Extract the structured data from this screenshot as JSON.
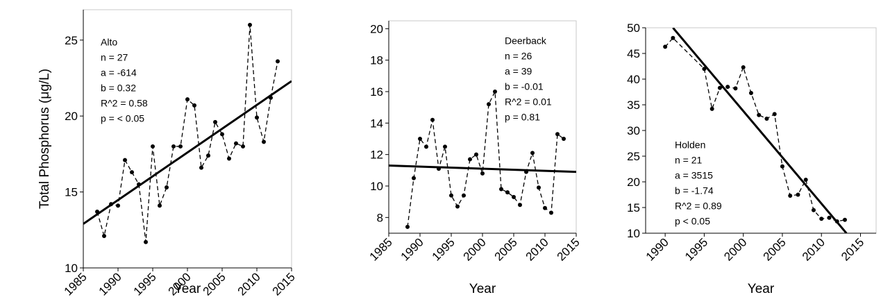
{
  "chart_data": [
    {
      "type": "line",
      "ylabel": "Total Phosphorus (μg/L)",
      "xlabel": "Year",
      "annotation": [
        "Alto",
        "n = 27",
        "a = -614",
        "b = 0.32",
        "R^2 = 0.58",
        "p = < 0.05"
      ],
      "xlim": [
        1985,
        2015
      ],
      "xticks": [
        1985,
        1990,
        1995,
        2000,
        2005,
        2010,
        2015
      ],
      "ylim": [
        10,
        27
      ],
      "yticks": [
        10,
        15,
        20,
        25
      ],
      "x": [
        1987,
        1988,
        1989,
        1990,
        1991,
        1992,
        1993,
        1994,
        1995,
        1996,
        1997,
        1998,
        1999,
        2000,
        2001,
        2002,
        2003,
        2004,
        2005,
        2006,
        2007,
        2008,
        2009,
        2010,
        2011,
        2012,
        2013
      ],
      "series": [
        {
          "color": "#000000",
          "style": "dashed",
          "markers": true,
          "values": [
            13.7,
            12.1,
            14.2,
            14.1,
            17.1,
            16.3,
            15.5,
            11.7,
            18.0,
            14.1,
            15.3,
            18.0,
            18.0,
            21.1,
            20.7,
            16.6,
            17.4,
            19.6,
            18.8,
            17.2,
            18.2,
            18.0,
            26.0,
            19.9,
            18.3,
            21.2,
            23.6
          ]
        },
        {
          "color": "#000000",
          "style": "solid",
          "markers": false,
          "x": [
            1985,
            2015
          ],
          "values": [
            12.9,
            22.3
          ]
        }
      ]
    },
    {
      "type": "line",
      "xlabel": "Year",
      "annotation": [
        "Deerback",
        "n = 26",
        "a = 39",
        "b = -0.01",
        "R^2 = 0.01",
        "p = 0.81"
      ],
      "xlim": [
        1985,
        2015
      ],
      "xticks": [
        1985,
        1990,
        1995,
        2000,
        2005,
        2010,
        2015
      ],
      "ylim": [
        7,
        20.5
      ],
      "yticks": [
        8,
        10,
        12,
        14,
        16,
        18,
        20
      ],
      "x": [
        1988,
        1989,
        1990,
        1991,
        1992,
        1993,
        1994,
        1995,
        1996,
        1997,
        1998,
        1999,
        2000,
        2001,
        2002,
        2003,
        2004,
        2005,
        2006,
        2007,
        2008,
        2009,
        2010,
        2011,
        2012,
        2013
      ],
      "series": [
        {
          "color": "#000000",
          "style": "dashed",
          "markers": true,
          "values": [
            7.4,
            10.5,
            13.0,
            12.5,
            14.2,
            11.1,
            12.5,
            9.4,
            8.7,
            9.4,
            11.7,
            12.0,
            10.8,
            15.2,
            16.0,
            9.8,
            9.6,
            9.3,
            8.8,
            10.9,
            12.1,
            9.9,
            8.6,
            8.3,
            13.3,
            13.0
          ]
        },
        {
          "color": "#000000",
          "style": "solid",
          "markers": false,
          "x": [
            1985,
            2015
          ],
          "values": [
            11.3,
            10.9
          ]
        }
      ]
    },
    {
      "type": "line",
      "xlabel": "Year",
      "annotation": [
        "Holden",
        "n = 21",
        "a = 3515",
        "b = -1.74",
        "R^2 = 0.89",
        "p < 0.05"
      ],
      "xlim": [
        1987.5,
        2017
      ],
      "xticks": [
        1990,
        1995,
        2000,
        2005,
        2010,
        2015
      ],
      "ylim": [
        10,
        50
      ],
      "yticks": [
        10,
        15,
        20,
        25,
        30,
        35,
        40,
        45,
        50
      ],
      "x": [
        1990,
        1991,
        1995,
        1996,
        1997,
        1998,
        1999,
        2000,
        2001,
        2002,
        2003,
        2004,
        2005,
        2006,
        2007,
        2008,
        2009,
        2010,
        2011,
        2012,
        2013
      ],
      "series": [
        {
          "color": "#000000",
          "style": "dashed",
          "markers": true,
          "values": [
            46.3,
            48.0,
            42.0,
            34.2,
            38.3,
            38.5,
            38.2,
            42.3,
            37.3,
            33.0,
            32.3,
            33.2,
            23.0,
            17.3,
            17.5,
            20.4,
            14.5,
            12.8,
            13.0,
            12.3,
            12.6
          ]
        },
        {
          "color": "#000000",
          "style": "solid",
          "markers": false,
          "x": [
            1991,
            2013.2
          ],
          "values": [
            50,
            10
          ]
        }
      ]
    }
  ]
}
